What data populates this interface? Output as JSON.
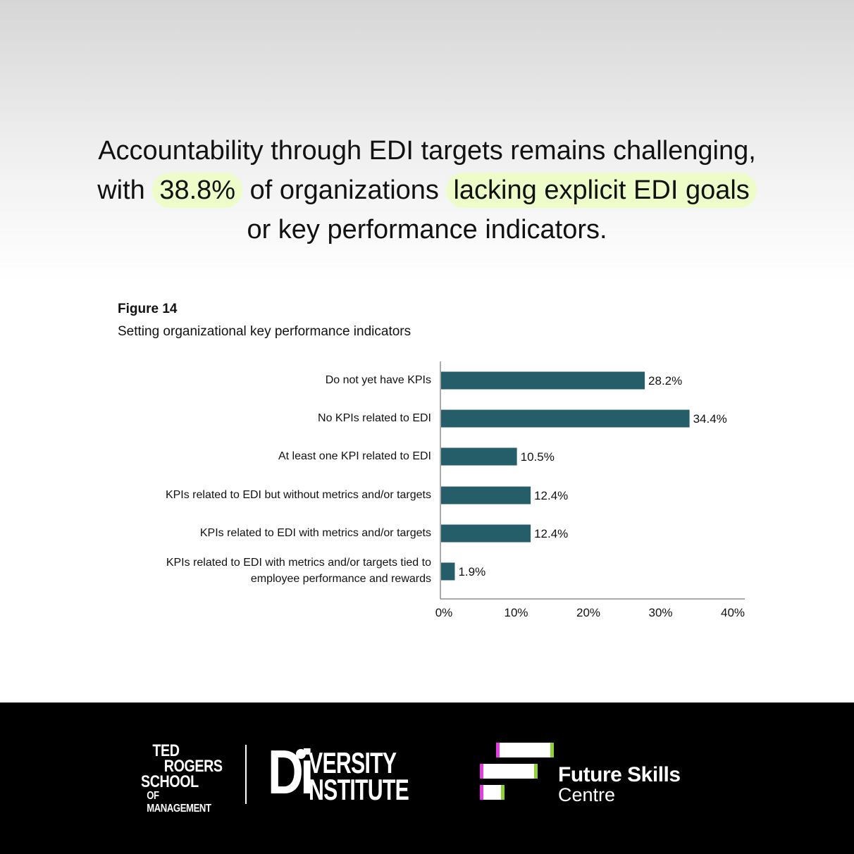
{
  "headline": {
    "part1": "Accountability through EDI targets remains challenging,",
    "part2": "with ",
    "highlight1": "38.8%",
    "part3": " of organizations ",
    "highlight2": "lacking explicit EDI goals",
    "part4": "or key performance indicators."
  },
  "figure": {
    "label": "Figure 14",
    "title": "Setting organizational key performance indicators"
  },
  "chart_data": {
    "type": "bar",
    "orientation": "horizontal",
    "categories": [
      "Do not yet have KPIs",
      "No KPIs related to EDI",
      "At least one KPI related to EDI",
      "KPIs related to EDI but without metrics and/or targets",
      "KPIs related to EDI with metrics and/or targets",
      "KPIs related to EDI with metrics and/or targets tied to employee performance and rewards"
    ],
    "category_lines": [
      [
        "Do not yet have KPIs"
      ],
      [
        "No KPIs related to EDI"
      ],
      [
        "At least one KPI related to EDI"
      ],
      [
        "KPIs related to EDI but without metrics and/or targets"
      ],
      [
        "KPIs related to EDI with metrics and/or targets"
      ],
      [
        "KPIs related to EDI with metrics and/or targets tied to",
        "employee performance and rewards"
      ]
    ],
    "values": [
      28.2,
      34.4,
      10.5,
      12.4,
      12.4,
      1.9
    ],
    "data_labels": [
      "28.2%",
      "34.4%",
      "10.5%",
      "12.4%",
      "12.4%",
      "1.9%"
    ],
    "xlim": [
      0,
      40
    ],
    "ticks": [
      0,
      10,
      20,
      30,
      40
    ],
    "tick_labels": [
      "0%",
      "10%",
      "20%",
      "30%",
      "40%"
    ],
    "grid": false,
    "bar_color": "#255e69"
  },
  "footer": {
    "trs_lines": [
      "TED",
      "ROGERS",
      "SCHOOL",
      "OF MANAGEMENT"
    ],
    "di_big": "Di",
    "di_word1": "VERSITY",
    "di_word2": "NSTITUTE",
    "fsc_line1": "Future Skills",
    "fsc_line2": "Centre",
    "colors": {
      "background": "#000000",
      "magenta": "#e43ee0",
      "green": "#8ed136"
    }
  }
}
